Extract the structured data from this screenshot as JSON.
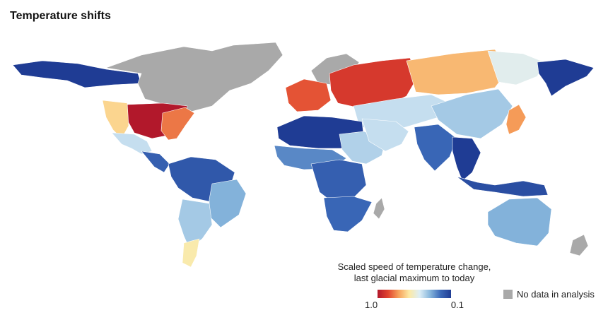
{
  "title": "Temperature shifts",
  "legend": {
    "title_line1": "Scaled speed of temperature change,",
    "title_line2": "last glacial maximum to today",
    "tick_high": "1.0",
    "tick_low": "0.1",
    "gradient_colors": [
      "#b2182b",
      "#e0432e",
      "#f6a05a",
      "#fde9a3",
      "#ddeef6",
      "#87b6dc",
      "#3b69b8",
      "#1f3c94"
    ],
    "nodata_label": "No data in analysis",
    "nodata_color": "#a9a9a9"
  },
  "regions": [
    {
      "name": "Alaska and western Canada",
      "value": 0.1
    },
    {
      "name": "Northern Canada and Greenland",
      "value": null
    },
    {
      "name": "Central United States",
      "value": 1.0
    },
    {
      "name": "Eastern United States",
      "value": 0.8
    },
    {
      "name": "Western United States",
      "value": 0.65
    },
    {
      "name": "Mexico",
      "value": 0.45
    },
    {
      "name": "Central America",
      "value": 0.2
    },
    {
      "name": "Northern South America",
      "value": 0.18
    },
    {
      "name": "Eastern Brazil",
      "value": 0.35
    },
    {
      "name": "Southern South America",
      "value": 0.4
    },
    {
      "name": "Patagonia",
      "value": 0.6
    },
    {
      "name": "Scandinavia",
      "value": null
    },
    {
      "name": "Western Europe",
      "value": 0.85
    },
    {
      "name": "Eastern Europe and western Russia",
      "value": 0.9
    },
    {
      "name": "Siberia",
      "value": 0.7
    },
    {
      "name": "Eastern Siberia",
      "value": 0.5
    },
    {
      "name": "Russian Far East",
      "value": 0.1
    },
    {
      "name": "Central Asia",
      "value": 0.45
    },
    {
      "name": "China",
      "value": 0.4
    },
    {
      "name": "Japan",
      "value": 0.75
    },
    {
      "name": "North Africa",
      "value": 0.1
    },
    {
      "name": "Sahel",
      "value": 0.28
    },
    {
      "name": "Horn of Africa",
      "value": 0.42
    },
    {
      "name": "Central Africa",
      "value": 0.2
    },
    {
      "name": "Southern Africa",
      "value": 0.22
    },
    {
      "name": "Madagascar",
      "value": null
    },
    {
      "name": "Middle East",
      "value": 0.45
    },
    {
      "name": "India",
      "value": 0.22
    },
    {
      "name": "Southeast Asia",
      "value": 0.1
    },
    {
      "name": "Indonesia",
      "value": 0.15
    },
    {
      "name": "Australia",
      "value": 0.35
    },
    {
      "name": "New Zealand",
      "value": null
    }
  ]
}
